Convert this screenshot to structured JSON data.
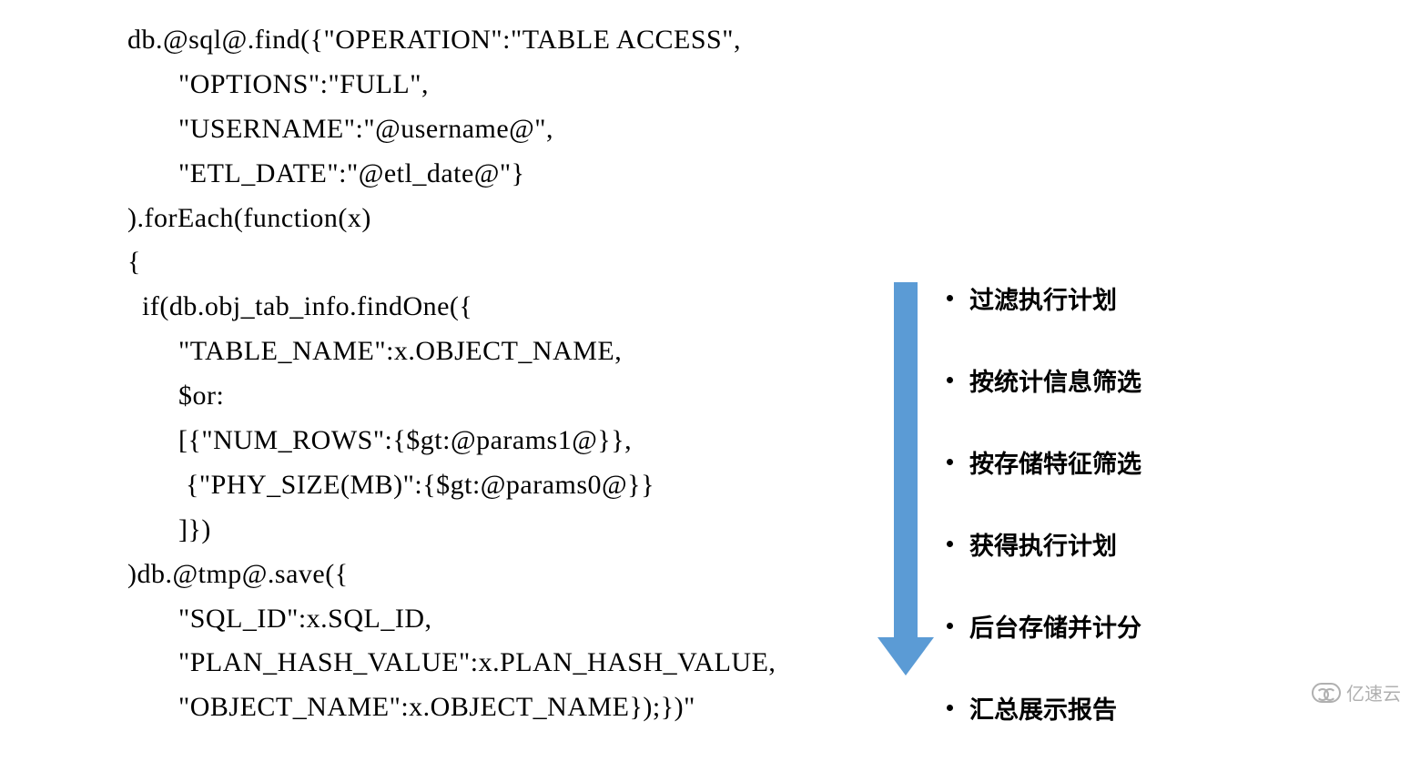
{
  "code": {
    "lines": [
      "db.@sql@.find({\"OPERATION\":\"TABLE ACCESS\",",
      "       \"OPTIONS\":\"FULL\",",
      "       \"USERNAME\":\"@username@\",",
      "       \"ETL_DATE\":\"@etl_date@\"}",
      ").forEach(function(x)",
      "{",
      "  if(db.obj_tab_info.findOne({",
      "       \"TABLE_NAME\":x.OBJECT_NAME,",
      "       $or:",
      "       [{\"NUM_ROWS\":{$gt:@params1@}},",
      "        {\"PHY_SIZE(MB)\":{$gt:@params0@}}",
      "       ]})",
      ")db.@tmp@.save({",
      "       \"SQL_ID\":x.SQL_ID,",
      "       \"PLAN_HASH_VALUE\":x.PLAN_HASH_VALUE,",
      "       \"OBJECT_NAME\":x.OBJECT_NAME});})\""
    ]
  },
  "arrow": {
    "color": "#5b9bd5"
  },
  "steps": [
    "过滤执行计划",
    "按统计信息筛选",
    "按存储特征筛选",
    "获得执行计划",
    "后台存储并计分",
    "汇总展示报告"
  ],
  "watermark": {
    "text": "亿速云"
  }
}
